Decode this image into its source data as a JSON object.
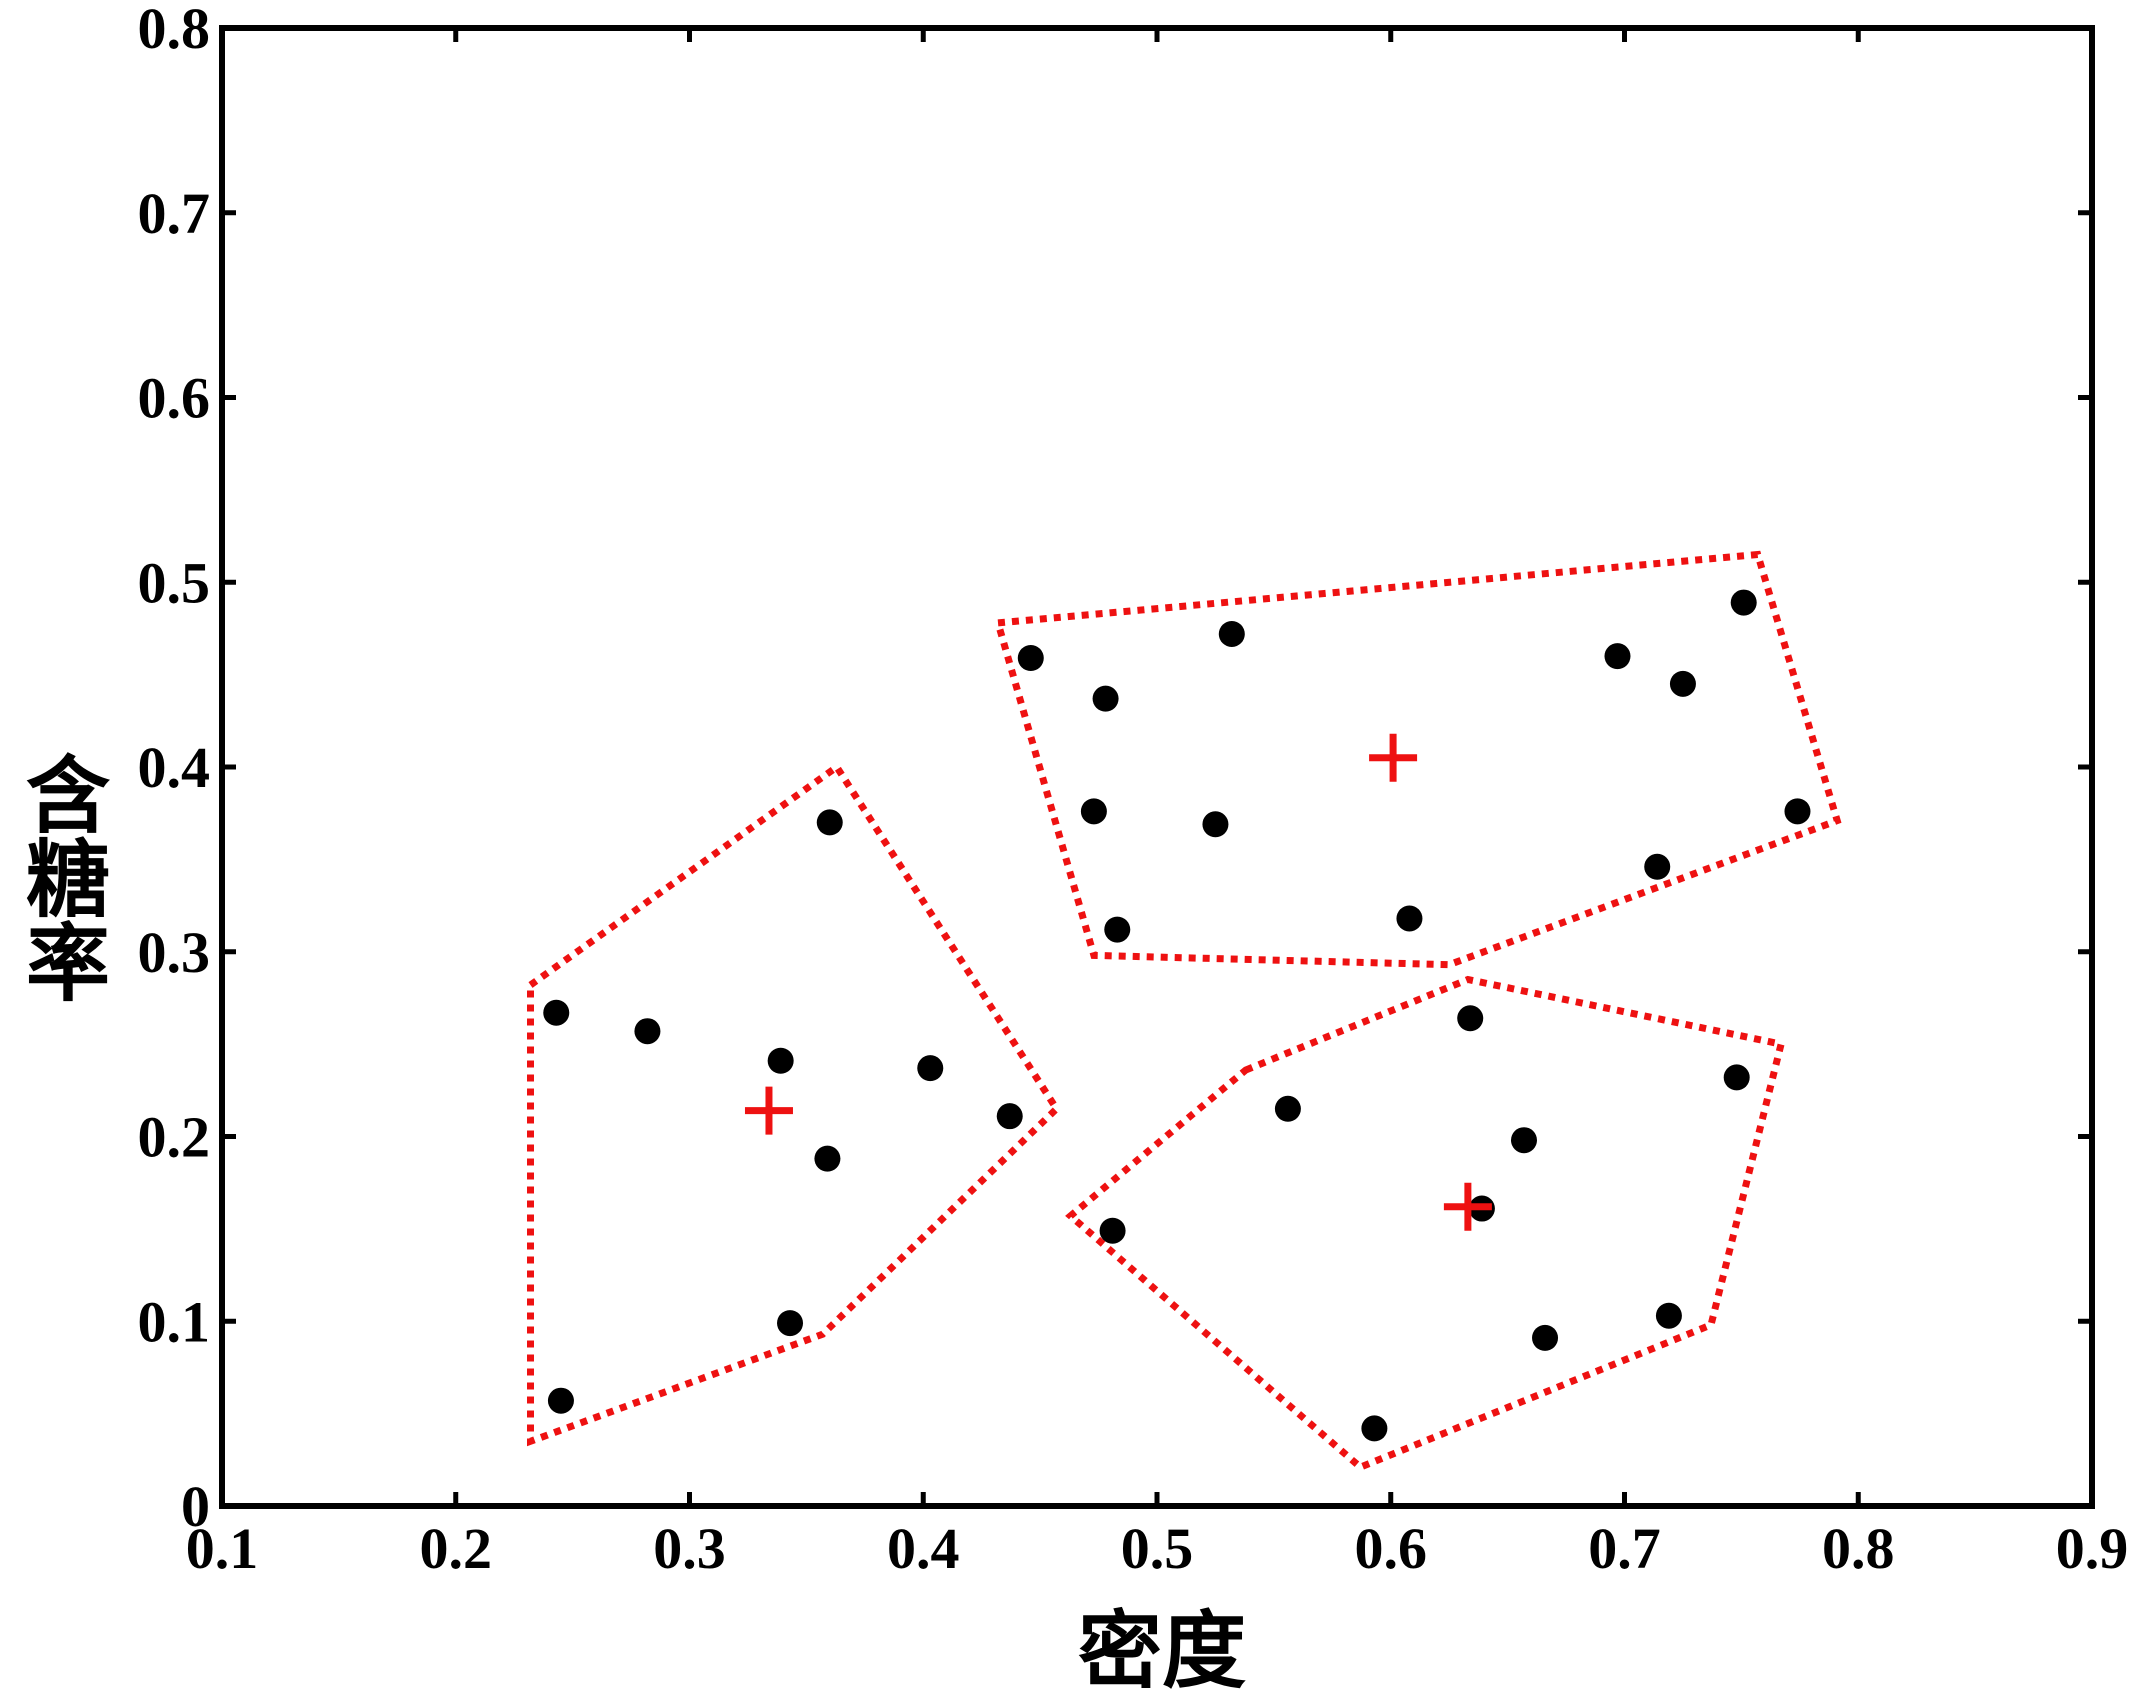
{
  "chart_data": {
    "type": "scatter",
    "title": "",
    "xlabel": "密度",
    "ylabel": "含糖率",
    "xlim": [
      0.1,
      0.9
    ],
    "ylim": [
      0,
      0.8
    ],
    "x_ticks": [
      0.1,
      0.2,
      0.3,
      0.4,
      0.5,
      0.6,
      0.7,
      0.8,
      0.9
    ],
    "y_ticks": [
      0,
      0.1,
      0.2,
      0.3,
      0.4,
      0.5,
      0.6,
      0.7,
      0.8
    ],
    "x_tick_labels": [
      "0.1",
      "0.2",
      "0.3",
      "0.4",
      "0.5",
      "0.6",
      "0.7",
      "0.8",
      "0.9"
    ],
    "y_tick_labels": [
      "0",
      "0.1",
      "0.2",
      "0.3",
      "0.4",
      "0.5",
      "0.6",
      "0.7",
      "0.8"
    ],
    "grid": false,
    "colors": {
      "points": "#000000",
      "clusters": "#ee1111",
      "centroids": "#ee1111"
    },
    "points": [
      {
        "x": 0.697,
        "y": 0.46
      },
      {
        "x": 0.774,
        "y": 0.376
      },
      {
        "x": 0.634,
        "y": 0.264
      },
      {
        "x": 0.608,
        "y": 0.318
      },
      {
        "x": 0.556,
        "y": 0.215
      },
      {
        "x": 0.403,
        "y": 0.237
      },
      {
        "x": 0.481,
        "y": 0.149
      },
      {
        "x": 0.437,
        "y": 0.211
      },
      {
        "x": 0.666,
        "y": 0.091
      },
      {
        "x": 0.243,
        "y": 0.267
      },
      {
        "x": 0.245,
        "y": 0.057
      },
      {
        "x": 0.343,
        "y": 0.099
      },
      {
        "x": 0.639,
        "y": 0.161
      },
      {
        "x": 0.657,
        "y": 0.198
      },
      {
        "x": 0.36,
        "y": 0.37
      },
      {
        "x": 0.593,
        "y": 0.042
      },
      {
        "x": 0.719,
        "y": 0.103
      },
      {
        "x": 0.359,
        "y": 0.188
      },
      {
        "x": 0.339,
        "y": 0.241
      },
      {
        "x": 0.282,
        "y": 0.257
      },
      {
        "x": 0.748,
        "y": 0.232
      },
      {
        "x": 0.714,
        "y": 0.346
      },
      {
        "x": 0.483,
        "y": 0.312
      },
      {
        "x": 0.478,
        "y": 0.437
      },
      {
        "x": 0.525,
        "y": 0.369
      },
      {
        "x": 0.751,
        "y": 0.489
      },
      {
        "x": 0.532,
        "y": 0.472
      },
      {
        "x": 0.473,
        "y": 0.376
      },
      {
        "x": 0.725,
        "y": 0.445
      },
      {
        "x": 0.446,
        "y": 0.459
      }
    ],
    "centroids": [
      {
        "x": 0.334,
        "y": 0.214
      },
      {
        "x": 0.601,
        "y": 0.405
      },
      {
        "x": 0.633,
        "y": 0.162
      }
    ],
    "clusters": [
      [
        [
          0.232,
          0.282
        ],
        [
          0.363,
          0.4
        ],
        [
          0.457,
          0.215
        ],
        [
          0.357,
          0.093
        ],
        [
          0.232,
          0.035
        ]
      ],
      [
        [
          0.432,
          0.478
        ],
        [
          0.757,
          0.515
        ],
        [
          0.791,
          0.371
        ],
        [
          0.625,
          0.293
        ],
        [
          0.473,
          0.298
        ]
      ],
      [
        [
          0.538,
          0.236
        ],
        [
          0.633,
          0.285
        ],
        [
          0.767,
          0.25
        ],
        [
          0.737,
          0.098
        ],
        [
          0.587,
          0.021
        ],
        [
          0.463,
          0.157
        ]
      ]
    ]
  }
}
